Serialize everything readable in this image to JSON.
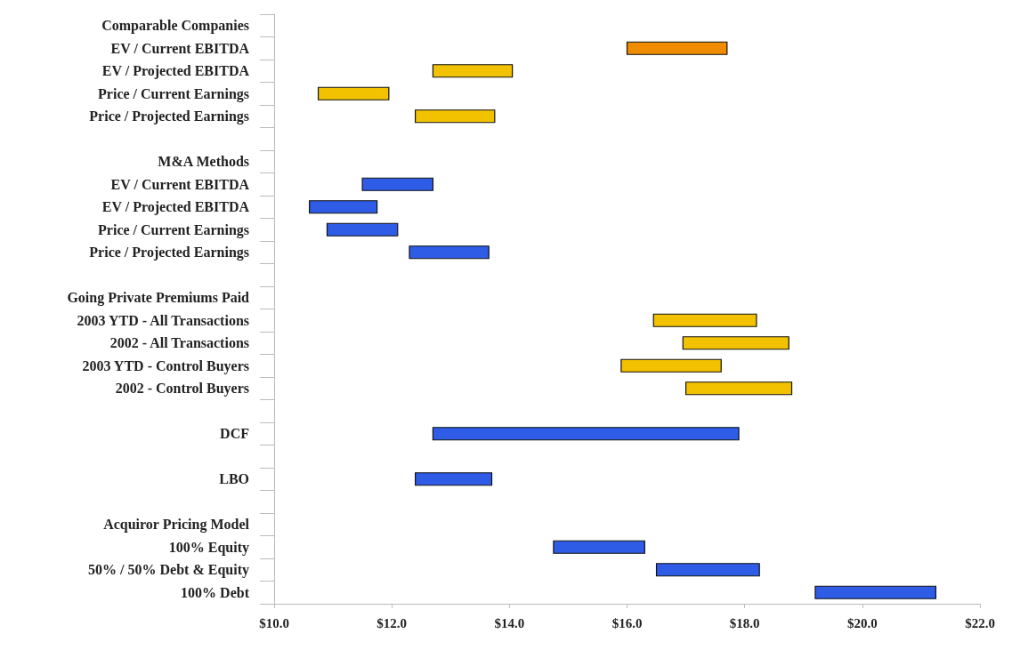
{
  "chart_data": {
    "type": "bar",
    "orientation": "horizontal",
    "categories": [
      "Comparable Companies",
      "EV / Current EBITDA",
      "EV / Projected EBITDA",
      "Price / Current Earnings",
      "Price / Projected Earnings",
      null,
      "M&A Methods",
      "EV / Current EBITDA",
      "EV / Projected EBITDA",
      "Price / Current Earnings",
      "Price / Projected Earnings",
      null,
      "Going Private Premiums Paid",
      "2003 YTD - All Transactions",
      "2002 - All Transactions",
      "2003 YTD - Control Buyers",
      "2002 - Control Buyers",
      null,
      "DCF",
      null,
      "LBO",
      null,
      "Acquiror Pricing Model",
      "100% Equity",
      "50% / 50% Debt & Equity",
      "100% Debt"
    ],
    "base": [
      null,
      16.0,
      12.7,
      10.75,
      12.4,
      null,
      null,
      11.5,
      10.6,
      10.9,
      12.3,
      null,
      null,
      16.45,
      16.95,
      15.9,
      17.0,
      null,
      12.7,
      null,
      12.4,
      null,
      null,
      14.75,
      16.5,
      19.2
    ],
    "values": [
      null,
      1.7,
      1.35,
      1.2,
      1.35,
      null,
      null,
      1.2,
      1.15,
      1.2,
      1.35,
      null,
      null,
      1.75,
      1.8,
      1.7,
      1.8,
      null,
      5.2,
      null,
      1.3,
      null,
      null,
      1.55,
      1.75,
      2.05
    ],
    "colors": [
      null,
      "#f08c00",
      "#f2c200",
      "#f2c200",
      "#f2c200",
      null,
      null,
      "#2e5ce6",
      "#2e5ce6",
      "#2e5ce6",
      "#2e5ce6",
      null,
      null,
      "#f2c200",
      "#f2c200",
      "#f2c200",
      "#f2c200",
      null,
      "#2e5ce6",
      null,
      "#2e5ce6",
      null,
      null,
      "#2e5ce6",
      "#2e5ce6",
      "#2e5ce6"
    ],
    "xlim": [
      10,
      22
    ],
    "xticks": [
      {
        "value": 10,
        "label": "$10.0"
      },
      {
        "value": 12,
        "label": "$12.0"
      },
      {
        "value": 14,
        "label": "$14.0"
      },
      {
        "value": 16,
        "label": "$16.0"
      },
      {
        "value": 18,
        "label": "$18.0"
      },
      {
        "value": 20,
        "label": "$20.0"
      },
      {
        "value": 22,
        "label": "$22.0"
      }
    ]
  }
}
